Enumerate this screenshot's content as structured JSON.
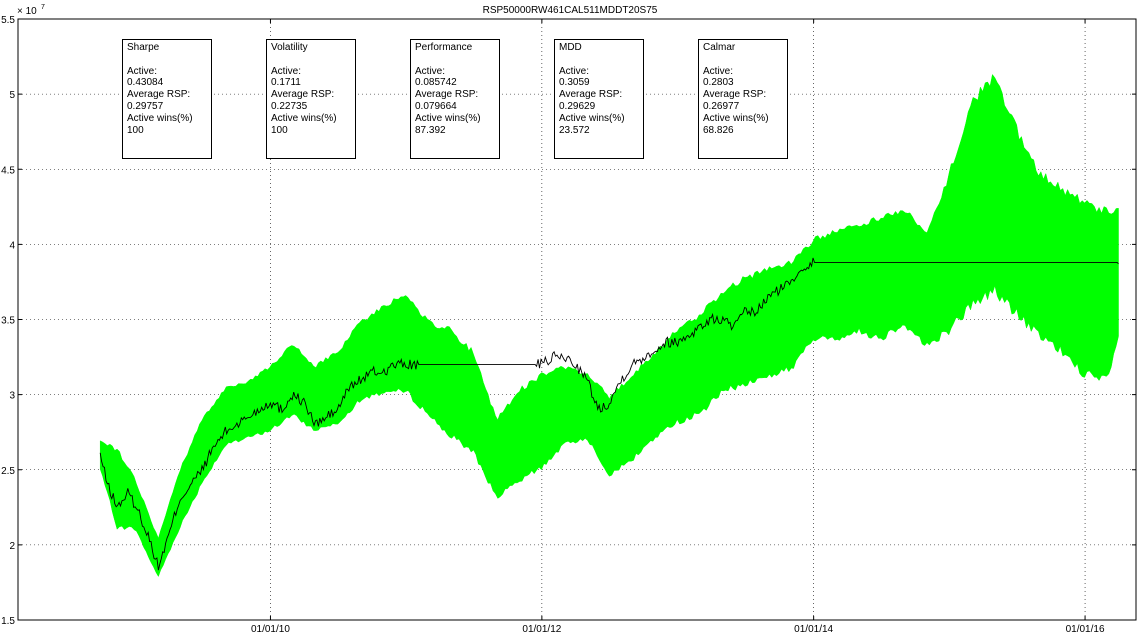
{
  "chart_data": {
    "type": "area",
    "title": "RSP50000RW461CAL511MDDT20S75",
    "xlabel": "",
    "ylabel": "",
    "y_exponent_label": "× 10",
    "y_exponent_power": "7",
    "ylim": [
      15000000,
      55000000
    ],
    "y_ticks": [
      15000000,
      20000000,
      25000000,
      30000000,
      35000000,
      40000000,
      45000000,
      50000000,
      55000000
    ],
    "y_tick_labels": [
      "1.5",
      "2",
      "2.5",
      "3",
      "3.5",
      "4",
      "4.5",
      "5",
      "5.5"
    ],
    "xlim": [
      "2008-02-22",
      "2016-05-17"
    ],
    "x_ticks": [
      "2010-01-01",
      "2012-01-01",
      "2014-01-01",
      "2016-01-01"
    ],
    "x_tick_labels": [
      "01/01/10",
      "01/01/12",
      "01/01/14",
      "01/01/16"
    ],
    "grid": true,
    "series": [
      {
        "role": "band",
        "color": "#00ff00",
        "x": [
          "2008-09-30",
          "2008-11-15",
          "2009-01-01",
          "2009-03-05",
          "2009-05-01",
          "2009-07-01",
          "2009-09-01",
          "2009-11-01",
          "2010-01-01",
          "2010-03-01",
          "2010-05-01",
          "2010-07-01",
          "2010-09-01",
          "2010-11-01",
          "2011-01-01",
          "2011-03-01",
          "2011-05-01",
          "2011-07-01",
          "2011-09-01",
          "2011-11-01",
          "2012-01-01",
          "2012-03-01",
          "2012-05-01",
          "2012-07-01",
          "2012-09-01",
          "2012-11-01",
          "2013-01-01",
          "2013-03-01",
          "2013-05-01",
          "2013-07-01",
          "2013-09-01",
          "2013-11-01",
          "2014-01-01",
          "2014-03-01",
          "2014-05-01",
          "2014-07-01",
          "2014-09-01",
          "2014-11-01",
          "2015-01-01",
          "2015-03-01",
          "2015-05-01",
          "2015-07-01",
          "2015-09-01",
          "2015-11-01",
          "2016-01-01",
          "2016-03-01",
          "2016-03-31"
        ],
        "upper": [
          27000000,
          26500000,
          24500000,
          20500000,
          25000000,
          28500000,
          30500000,
          31000000,
          32000000,
          33500000,
          32000000,
          33000000,
          35000000,
          36000000,
          37000000,
          35000000,
          34500000,
          33000000,
          28500000,
          30500000,
          31500000,
          32000000,
          31500000,
          30000000,
          31500000,
          33000000,
          34500000,
          35500000,
          37000000,
          38000000,
          38500000,
          39000000,
          40500000,
          41000000,
          41500000,
          42000000,
          42500000,
          41000000,
          45000000,
          50000000,
          51500000,
          48000000,
          45000000,
          44000000,
          43000000,
          42500000,
          42500000
        ],
        "lower": [
          25000000,
          21000000,
          21000000,
          17800000,
          21000000,
          24000000,
          26500000,
          27000000,
          27500000,
          28500000,
          27500000,
          28000000,
          29500000,
          30000000,
          30000000,
          28500000,
          27000000,
          26000000,
          23000000,
          24000000,
          25000000,
          26500000,
          27000000,
          24500000,
          25500000,
          27000000,
          28000000,
          28500000,
          30000000,
          30500000,
          31000000,
          31500000,
          33500000,
          33500000,
          34000000,
          33500000,
          34500000,
          33000000,
          34000000,
          35500000,
          36500000,
          35000000,
          33500000,
          32500000,
          31000000,
          30500000,
          33500000
        ]
      },
      {
        "role": "active",
        "color": "#000000",
        "x": [
          "2008-09-30",
          "2008-10-20",
          "2008-11-15",
          "2008-12-15",
          "2009-01-15",
          "2009-02-15",
          "2009-03-05",
          "2009-04-01",
          "2009-05-01",
          "2009-06-01",
          "2009-07-01",
          "2009-08-01",
          "2009-09-01",
          "2009-10-01",
          "2009-11-01",
          "2009-12-01",
          "2010-01-01",
          "2010-02-01",
          "2010-03-01",
          "2010-04-01",
          "2010-05-01",
          "2010-06-01",
          "2010-07-01",
          "2010-08-01",
          "2010-09-01",
          "2010-10-01",
          "2010-11-01",
          "2010-12-01",
          "2011-01-01",
          "2011-02-01",
          "2011-12-15",
          "2012-01-01",
          "2012-02-01",
          "2012-03-01",
          "2012-04-01",
          "2012-05-01",
          "2012-06-01",
          "2012-07-01",
          "2012-08-01",
          "2012-09-01",
          "2012-10-01",
          "2012-11-01",
          "2012-12-01",
          "2013-01-01",
          "2013-02-01",
          "2013-03-01",
          "2013-04-01",
          "2013-05-01",
          "2013-06-01",
          "2013-07-01",
          "2013-08-01",
          "2013-09-01",
          "2013-10-01",
          "2013-11-01",
          "2013-12-01",
          "2014-01-01",
          "2016-03-31"
        ],
        "values": [
          26000000,
          24000000,
          22500000,
          23500000,
          22000000,
          20000000,
          18500000,
          20500000,
          23000000,
          24000000,
          25000000,
          26500000,
          27500000,
          28000000,
          28500000,
          29000000,
          29500000,
          29000000,
          30000000,
          29500000,
          28000000,
          28500000,
          29000000,
          30500000,
          31000000,
          31500000,
          31500000,
          32000000,
          32000000,
          32000000,
          32000000,
          32000000,
          32500000,
          32500000,
          32000000,
          31000000,
          29000000,
          29500000,
          31000000,
          32000000,
          32500000,
          33000000,
          33500000,
          33500000,
          34000000,
          34500000,
          35000000,
          35000000,
          34500000,
          35500000,
          35500000,
          36500000,
          37000000,
          37500000,
          38500000,
          38800000,
          38800000
        ]
      }
    ],
    "boxes": [
      {
        "title": "Sharpe",
        "l1": "Active:",
        "v1": "0.43084",
        "l2": "Average RSP:",
        "v2": "0.29757",
        "l3": "Active wins(%)",
        "v3": "100"
      },
      {
        "title": "Volatility",
        "l1": "Active:",
        "v1": "0.1711",
        "l2": "Average RSP:",
        "v2": "0.22735",
        "l3": "Active wins(%)",
        "v3": "100"
      },
      {
        "title": "Performance",
        "l1": "Active:",
        "v1": "0.085742",
        "l2": "Average RSP:",
        "v2": "0.079664",
        "l3": "Active wins(%)",
        "v3": "87.392"
      },
      {
        "title": "MDD",
        "l1": "Active:",
        "v1": "0.3059",
        "l2": "Average RSP:",
        "v2": "0.29629",
        "l3": "Active wins(%)",
        "v3": "23.572"
      },
      {
        "title": "Calmar",
        "l1": "Active:",
        "v1": "0.2803",
        "l2": "Average RSP:",
        "v2": "0.26977",
        "l3": "Active wins(%)",
        "v3": "68.826"
      }
    ]
  }
}
